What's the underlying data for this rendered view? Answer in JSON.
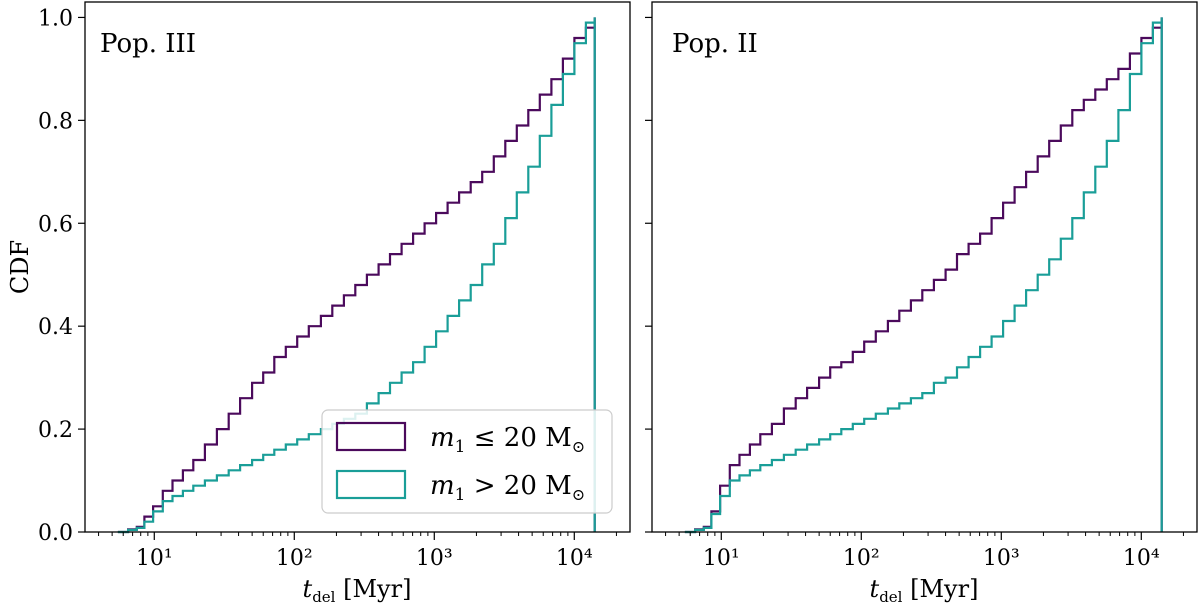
{
  "chart_data": [
    {
      "type": "line",
      "step": true,
      "title": "Pop. III",
      "xlabel": "t_del [Myr]",
      "ylabel": "CDF",
      "xscale": "log",
      "xlim": [
        3.2,
        25000
      ],
      "ylim": [
        0,
        1.03
      ],
      "xticks": [
        "10¹",
        "10²",
        "10³",
        "10⁴"
      ],
      "yticks": [
        "0.0",
        "0.2",
        "0.4",
        "0.6",
        "0.8",
        "1.0"
      ],
      "legend": {
        "placement": "lower-right",
        "entries": [
          {
            "symbol": "m",
            "sub": "1",
            "relation": "≤ 20 M",
            "tail": "⊙"
          },
          {
            "symbol": "m",
            "sub": "1",
            "relation": "> 20 M",
            "tail": "⊙"
          }
        ]
      },
      "series": [
        {
          "name": "m1 <= 20 Msun",
          "color": "#4b0a5c",
          "x": [
            5.5,
            6.5,
            7.5,
            8.5,
            9.8,
            11.5,
            13.5,
            16,
            19,
            23,
            28,
            34,
            41,
            50,
            60,
            72,
            87,
            105,
            127,
            155,
            187,
            226,
            273,
            330,
            400,
            483,
            584,
            706,
            853,
            1030,
            1245,
            1505,
            1820,
            2200,
            2660,
            3215,
            3885,
            4695,
            5675,
            6860,
            8290,
            10020,
            12110,
            14000
          ],
          "y": [
            0.0,
            0.005,
            0.01,
            0.03,
            0.05,
            0.08,
            0.1,
            0.12,
            0.14,
            0.17,
            0.2,
            0.23,
            0.26,
            0.29,
            0.31,
            0.34,
            0.36,
            0.38,
            0.4,
            0.42,
            0.44,
            0.46,
            0.48,
            0.5,
            0.52,
            0.54,
            0.56,
            0.58,
            0.6,
            0.62,
            0.64,
            0.66,
            0.68,
            0.7,
            0.73,
            0.76,
            0.79,
            0.82,
            0.85,
            0.88,
            0.92,
            0.96,
            0.98,
            1.0
          ]
        },
        {
          "name": "m1 > 20 Msun",
          "color": "#1a9e98",
          "x": [
            5.5,
            6.5,
            7.5,
            8.5,
            9.8,
            11.5,
            13.5,
            16,
            19,
            23,
            28,
            34,
            41,
            50,
            60,
            72,
            87,
            105,
            127,
            155,
            187,
            226,
            273,
            330,
            400,
            483,
            584,
            706,
            853,
            1030,
            1245,
            1505,
            1820,
            2200,
            2660,
            3215,
            3885,
            4695,
            5675,
            6860,
            8290,
            10020,
            12110,
            14000
          ],
          "y": [
            0.0,
            0.004,
            0.008,
            0.02,
            0.04,
            0.06,
            0.07,
            0.08,
            0.09,
            0.1,
            0.11,
            0.12,
            0.13,
            0.14,
            0.15,
            0.16,
            0.17,
            0.18,
            0.19,
            0.2,
            0.21,
            0.22,
            0.23,
            0.25,
            0.27,
            0.29,
            0.31,
            0.33,
            0.36,
            0.39,
            0.42,
            0.45,
            0.48,
            0.52,
            0.56,
            0.61,
            0.66,
            0.71,
            0.77,
            0.83,
            0.89,
            0.95,
            0.99,
            1.0
          ]
        }
      ]
    },
    {
      "type": "line",
      "step": true,
      "title": "Pop. II",
      "xlabel": "t_del [Myr]",
      "ylabel": "",
      "xscale": "log",
      "xlim": [
        3.2,
        25000
      ],
      "ylim": [
        0,
        1.03
      ],
      "xticks": [
        "10¹",
        "10²",
        "10³",
        "10⁴"
      ],
      "series": [
        {
          "name": "m1 <= 20 Msun",
          "color": "#4b0a5c",
          "x": [
            5.5,
            6.5,
            7.5,
            8.5,
            9.8,
            11.5,
            13.5,
            16,
            19,
            23,
            28,
            34,
            41,
            50,
            60,
            72,
            87,
            105,
            127,
            155,
            187,
            226,
            273,
            330,
            400,
            483,
            584,
            706,
            853,
            1030,
            1245,
            1505,
            1820,
            2200,
            2660,
            3215,
            3885,
            4695,
            5675,
            6860,
            8290,
            10020,
            12110,
            14000
          ],
          "y": [
            0.0,
            0.005,
            0.01,
            0.04,
            0.09,
            0.13,
            0.15,
            0.17,
            0.19,
            0.21,
            0.24,
            0.26,
            0.28,
            0.3,
            0.32,
            0.33,
            0.35,
            0.37,
            0.39,
            0.41,
            0.43,
            0.45,
            0.47,
            0.49,
            0.51,
            0.54,
            0.56,
            0.58,
            0.61,
            0.64,
            0.67,
            0.7,
            0.73,
            0.76,
            0.79,
            0.82,
            0.84,
            0.86,
            0.88,
            0.9,
            0.93,
            0.96,
            0.98,
            1.0
          ]
        },
        {
          "name": "m1 > 20 Msun",
          "color": "#1a9e98",
          "x": [
            5.5,
            6.5,
            7.5,
            8.5,
            9.8,
            11.5,
            13.5,
            16,
            19,
            23,
            28,
            34,
            41,
            50,
            60,
            72,
            87,
            105,
            127,
            155,
            187,
            226,
            273,
            330,
            400,
            483,
            584,
            706,
            853,
            1030,
            1245,
            1505,
            1820,
            2200,
            2660,
            3215,
            3885,
            4695,
            5675,
            6860,
            8290,
            10020,
            12110,
            14000
          ],
          "y": [
            0.0,
            0.004,
            0.008,
            0.035,
            0.07,
            0.1,
            0.11,
            0.12,
            0.13,
            0.14,
            0.15,
            0.16,
            0.17,
            0.18,
            0.19,
            0.2,
            0.21,
            0.22,
            0.23,
            0.24,
            0.25,
            0.26,
            0.27,
            0.29,
            0.3,
            0.32,
            0.34,
            0.36,
            0.38,
            0.41,
            0.44,
            0.47,
            0.5,
            0.53,
            0.57,
            0.61,
            0.66,
            0.71,
            0.76,
            0.82,
            0.89,
            0.95,
            0.99,
            1.0
          ]
        }
      ]
    }
  ]
}
